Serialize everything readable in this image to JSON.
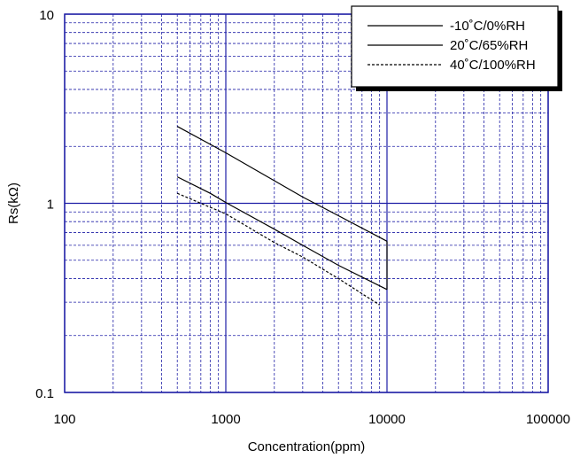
{
  "chart_data": {
    "type": "line",
    "title": "",
    "xlabel": "Concentration(ppm)",
    "ylabel": "Rs(kΩ)",
    "x_scale": "log",
    "y_scale": "log",
    "xlim": [
      100,
      100000
    ],
    "ylim": [
      0.1,
      10
    ],
    "x_ticks": [
      {
        "value": 100,
        "label": "100"
      },
      {
        "value": 1000,
        "label": "1000"
      },
      {
        "value": 10000,
        "label": "10000"
      },
      {
        "value": 100000,
        "label": "100000"
      }
    ],
    "y_ticks": [
      {
        "value": 0.1,
        "label": "0.1"
      },
      {
        "value": 1,
        "label": "1"
      },
      {
        "value": 10,
        "label": "10"
      }
    ],
    "grid": true,
    "legend_position": "top-right",
    "series": [
      {
        "name": "-10˚C/0%RH",
        "style": "solid",
        "x": [
          500,
          800,
          1000,
          3000,
          5000,
          10000
        ],
        "y": [
          2.55,
          2.05,
          1.85,
          1.08,
          0.86,
          0.63
        ]
      },
      {
        "name": "20˚C/65%RH",
        "style": "solid",
        "x": [
          500,
          800,
          1000,
          2000,
          3000,
          5000,
          10000
        ],
        "y": [
          1.38,
          1.13,
          1.01,
          0.73,
          0.6,
          0.47,
          0.35
        ]
      },
      {
        "name": "40˚C/100%RH",
        "style": "dashed",
        "x": [
          500,
          700,
          1000,
          2000,
          3000,
          5000,
          9000
        ],
        "y": [
          1.13,
          1.0,
          0.88,
          0.62,
          0.52,
          0.4,
          0.29
        ]
      }
    ],
    "colors": {
      "grid": "#1f1fa6",
      "line": "#000000"
    }
  }
}
